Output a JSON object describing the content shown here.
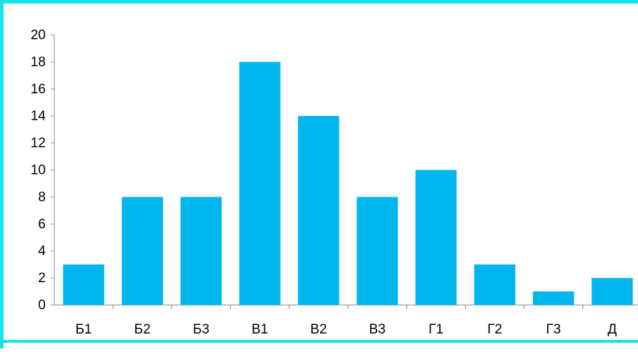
{
  "chart_data": {
    "type": "bar",
    "title": "",
    "xlabel": "",
    "ylabel": "",
    "categories": [
      "Б1",
      "Б2",
      "Б3",
      "В1",
      "В2",
      "В3",
      "Г1",
      "Г2",
      "Г3",
      "Д"
    ],
    "values": [
      3,
      8,
      8,
      18,
      14,
      8,
      10,
      3,
      1,
      2
    ],
    "ylim": [
      0,
      20
    ],
    "yticks": [
      0,
      2,
      4,
      6,
      8,
      10,
      12,
      14,
      16,
      18,
      20
    ],
    "grid": false,
    "legend": "none"
  },
  "colors": {
    "bar": "#00b6ee",
    "frame": "#19e3e3",
    "axis": "#888888"
  }
}
